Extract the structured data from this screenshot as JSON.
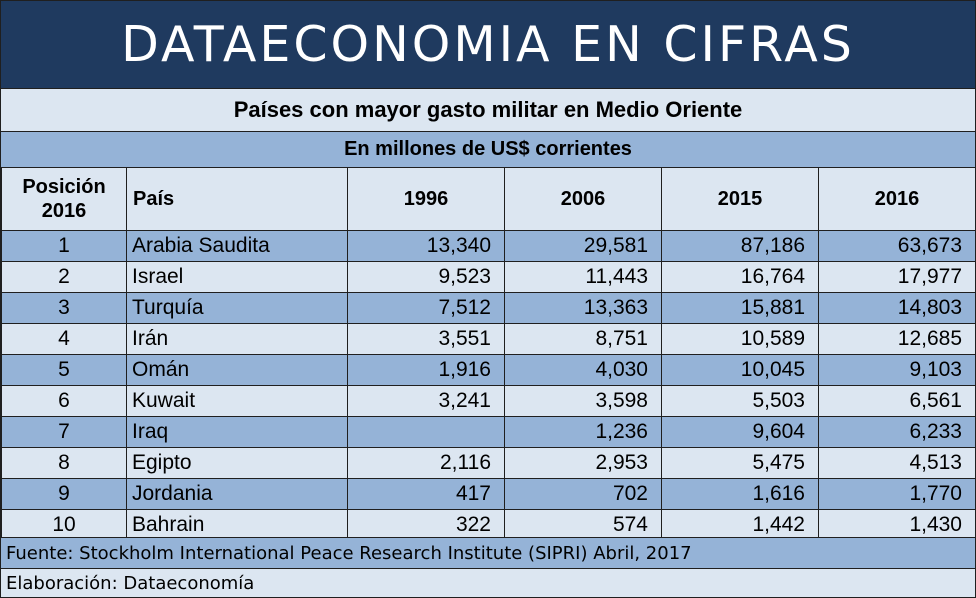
{
  "banner": {
    "text": "DATAECONOMIA EN CIFRAS"
  },
  "chart_data": {
    "type": "table",
    "title": "Países con mayor gasto militar en Medio Oriente",
    "subtitle": "En millones de US$ corrientes",
    "columns": [
      "Posición 2016",
      "País",
      "1996",
      "2006",
      "2015",
      "2016"
    ],
    "header": {
      "position_line1": "Posición",
      "position_line2": "2016",
      "country": "País",
      "years": [
        "1996",
        "2006",
        "2015",
        "2016"
      ]
    },
    "rows": [
      {
        "position": "1",
        "country": "Arabia Saudita",
        "values": [
          "13,340",
          "29,581",
          "87,186",
          "63,673"
        ]
      },
      {
        "position": "2",
        "country": "Israel",
        "values": [
          "9,523",
          "11,443",
          "16,764",
          "17,977"
        ]
      },
      {
        "position": "3",
        "country": "Turquía",
        "values": [
          "7,512",
          "13,363",
          "15,881",
          "14,803"
        ]
      },
      {
        "position": "4",
        "country": "Irán",
        "values": [
          "3,551",
          "8,751",
          "10,589",
          "12,685"
        ]
      },
      {
        "position": "5",
        "country": "Omán",
        "values": [
          "1,916",
          "4,030",
          "10,045",
          "9,103"
        ]
      },
      {
        "position": "6",
        "country": "Kuwait",
        "values": [
          "3,241",
          "3,598",
          "5,503",
          "6,561"
        ]
      },
      {
        "position": "7",
        "country": "Iraq",
        "values": [
          "",
          "1,236",
          "9,604",
          "6,233"
        ]
      },
      {
        "position": "8",
        "country": "Egipto",
        "values": [
          "2,116",
          "2,953",
          "5,475",
          "4,513"
        ]
      },
      {
        "position": "9",
        "country": "Jordania",
        "values": [
          "417",
          "702",
          "1,616",
          "1,770"
        ]
      },
      {
        "position": "10",
        "country": "Bahrain",
        "values": [
          "322",
          "574",
          "1,442",
          "1,430"
        ]
      }
    ],
    "source": "Fuente: Stockholm International Peace Research Institute (SIPRI) Abril, 2017",
    "credit": "Elaboración: Dataeconomía"
  },
  "colors": {
    "banner": "#1f3a5f",
    "band_dark": "#95b3d7",
    "band_light": "#dce6f1"
  }
}
